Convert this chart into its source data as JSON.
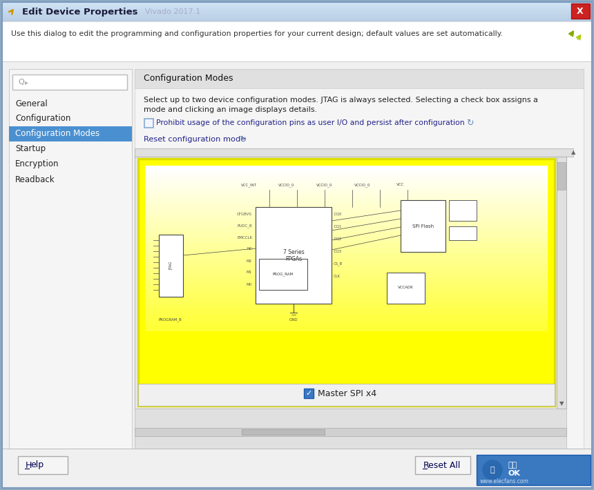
{
  "title": "Edit Device Properties",
  "titlebar_bg_left": "#dce6f5",
  "titlebar_bg_right": "#b8cce4",
  "close_btn_color": "#cc2222",
  "info_text": "Use this dialog to edit the programming and configuration properties for your current design; default values are set automatically.",
  "info_bg": "#ffffff",
  "window_bg": "#f0f0f0",
  "left_panel_bg": "#f0f0f0",
  "left_panel_border": "#cccccc",
  "left_panel_items": [
    "General",
    "Configuration",
    "Configuration Modes",
    "Startup",
    "Encryption",
    "Readback"
  ],
  "selected_item": "Configuration Modes",
  "selected_item_bg": "#4a90d0",
  "selected_item_color": "#ffffff",
  "right_panel_title": "Configuration Modes",
  "right_panel_title_bg": "#e0e0e0",
  "right_panel_bg": "#f5f5f5",
  "right_desc_line1": "Select up to two device configuration modes. JTAG is always selected. Selecting a check box assigns a",
  "right_desc_line2": "mode and clicking an image displays details.",
  "checkbox_text": "Prohibit usage of the configuration pins as user I/O and persist after configuration",
  "reset_text": "Reset configuration mode",
  "scrollbar_bg": "#e0e0e0",
  "scrollbar_thumb": "#c0c0c0",
  "image_border_color": "#e8e800",
  "image_bg": "#ffff00",
  "image_inner_bg": "#fffff0",
  "caption_text": "Master SPI x4",
  "bottom_panel_bg": "#e8e8e8",
  "help_btn": "Help",
  "reset_all_btn": "Reset All",
  "ok_watermark_bg": "#3a78bf",
  "outer_border": "#7a9abf"
}
